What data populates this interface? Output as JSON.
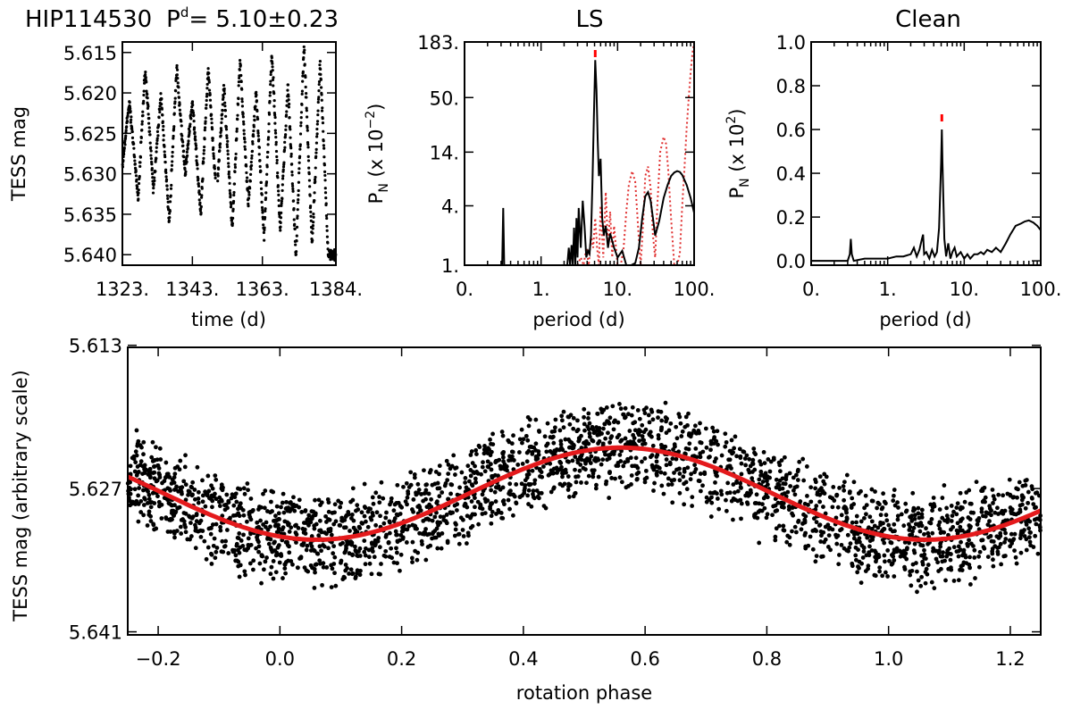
{
  "figure": {
    "star": "HIP114530",
    "period_prefix": "P",
    "period_super": "d",
    "period_value": "=  5.10±0.23",
    "colors": {
      "data": "#000000",
      "fit": "#e41a1c",
      "periodogram_alt": "#e03030",
      "peak_marker": "#ff0000"
    }
  },
  "chart_data": [
    {
      "id": "lightcurve",
      "type": "scatter",
      "title": "",
      "xlabel": "time (d)",
      "ylabel": "TESS mag",
      "xlim": [
        1323,
        1384
      ],
      "ylim": [
        5.6413,
        5.6137
      ],
      "y_inverted": true,
      "x_ticks": [
        "1323.",
        "1343.",
        "1363.",
        "1384."
      ],
      "x_tick_values": [
        1323,
        1343,
        1363,
        1384
      ],
      "y_ticks": [
        "5.615",
        "5.620",
        "5.625",
        "5.630",
        "5.635",
        "5.640"
      ],
      "y_tick_values": [
        5.615,
        5.62,
        5.625,
        5.63,
        5.635,
        5.64
      ],
      "min_x": [
        1323.0,
        1327.5,
        1331.9,
        1336.4,
        1340.9,
        1345.4,
        1349.9,
        1354.4,
        1359.0,
        1363.5,
        1368.1,
        1372.6,
        1377.2,
        1381.8
      ],
      "min_y": [
        5.629,
        5.633,
        5.632,
        5.636,
        5.63,
        5.635,
        5.633,
        5.637,
        5.634,
        5.638,
        5.637,
        5.64,
        5.639,
        5.64
      ],
      "max_x": [
        1325.0,
        1329.5,
        1334.0,
        1338.5,
        1343.0,
        1347.5,
        1352.0,
        1356.6,
        1361.2,
        1365.7,
        1370.3,
        1374.9,
        1379.5
      ],
      "max_y": [
        5.621,
        5.617,
        5.62,
        5.617,
        5.621,
        5.617,
        5.619,
        5.616,
        5.62,
        5.615,
        5.619,
        5.614,
        5.616
      ]
    },
    {
      "id": "ls",
      "type": "line",
      "title": "LS",
      "xlabel": "period (d)",
      "ylabel": "P",
      "ylabel_sub": "N",
      "ylabel_rest": " (x 10",
      "ylabel_exp": "−2",
      "ylabel_close": ")",
      "x_log": true,
      "y_log": true,
      "xlim": [
        0.1,
        100
      ],
      "ylim": [
        1,
        183
      ],
      "x_ticks": [
        "0.",
        "1.",
        "10.",
        "100."
      ],
      "x_tick_values": [
        0.1,
        1,
        10,
        100
      ],
      "y_ticks": [
        "1.",
        "4.",
        "14.",
        "50.",
        "183."
      ],
      "y_tick_values": [
        1,
        4,
        14,
        50,
        183
      ],
      "peak_period": 5.1,
      "series": [
        {
          "x": [
            0.3,
            0.31,
            0.32,
            0.33,
            0.34,
            2.2,
            2.3,
            2.4,
            2.5,
            2.6,
            2.7,
            2.8,
            2.9,
            3.0,
            3.1,
            3.3,
            3.5,
            3.7,
            3.9,
            4.1,
            4.3,
            4.5,
            4.7,
            4.9,
            5.1,
            5.3,
            5.5,
            5.7,
            6.0,
            6.3,
            6.6,
            7.0,
            7.5,
            8.0,
            9.0,
            10.0,
            11.5,
            13.0,
            15.0,
            17.0,
            19.0,
            21.0,
            23.0,
            25.0,
            27.0,
            29.0,
            31.0,
            35.0,
            40.0,
            45.0,
            50.0,
            55.0,
            60.0,
            65.0,
            70.0,
            80.0,
            90.0,
            100.0
          ],
          "y": [
            1.0,
            1.0,
            3.8,
            1.0,
            1.0,
            1.0,
            1.5,
            1.0,
            1.6,
            1.0,
            2.4,
            1.0,
            3.0,
            1.2,
            3.8,
            1.5,
            4.5,
            2.5,
            1.2,
            1.4,
            1.3,
            2.0,
            7.0,
            32.0,
            120.0,
            60.0,
            18.0,
            8.0,
            12.0,
            3.0,
            2.0,
            2.5,
            1.5,
            2.1,
            1.5,
            1.2,
            1.4,
            1.0,
            1.0,
            1.05,
            1.5,
            3.0,
            5.0,
            5.5,
            4.5,
            3.0,
            2.0,
            2.8,
            4.8,
            6.5,
            8.0,
            8.7,
            9.0,
            8.8,
            8.2,
            6.5,
            4.8,
            3.4
          ]
        },
        {
          "x": [
            3.0,
            3.3,
            3.6,
            3.9,
            4.2,
            4.5,
            4.8,
            5.1,
            5.4,
            5.7,
            6.0,
            6.5,
            7.0,
            7.5,
            8.0,
            8.5,
            9.0,
            10.0,
            11.0,
            12.0,
            13.0,
            14.0,
            15.5,
            17.0,
            18.5,
            20.0,
            21.5,
            23.0,
            25.0,
            27.0,
            29.0,
            31.0,
            33.0,
            36.0,
            40.0,
            43.0,
            46.0,
            50.0,
            55.0,
            60.0,
            65.0,
            70.0,
            75.0,
            80.0,
            85.0,
            90.0,
            95.0,
            100.0
          ],
          "y": [
            1.0,
            1.2,
            1.0,
            1.5,
            1.0,
            2.0,
            1.5,
            3.0,
            1.5,
            1.0,
            4.0,
            1.2,
            5.5,
            1.5,
            3.5,
            1.2,
            2.5,
            1.0,
            1.0,
            1.5,
            3.5,
            6.5,
            9.0,
            7.0,
            2.5,
            1.0,
            2.5,
            8.0,
            10.0,
            6.0,
            2.0,
            1.2,
            4.0,
            14.0,
            20.0,
            17.0,
            9.0,
            3.0,
            1.0,
            1.0,
            1.3,
            4.0,
            10.0,
            25.0,
            50.0,
            90.0,
            140.0,
            183.0
          ]
        }
      ]
    },
    {
      "id": "clean",
      "type": "line",
      "title": "Clean",
      "xlabel": "period (d)",
      "ylabel": "P",
      "ylabel_sub": "N",
      "ylabel_rest": " (x 10",
      "ylabel_exp": "2",
      "ylabel_close": ")",
      "x_log": true,
      "xlim": [
        0.1,
        100
      ],
      "ylim": [
        -0.02,
        1.0
      ],
      "x_ticks": [
        "0.",
        "1.",
        "10.",
        "100."
      ],
      "x_tick_values": [
        0.1,
        1,
        10,
        100
      ],
      "y_ticks": [
        "0.0",
        "0.2",
        "0.4",
        "0.6",
        "0.8",
        "1.0"
      ],
      "y_tick_values": [
        0.0,
        0.2,
        0.4,
        0.6,
        0.8,
        1.0
      ],
      "peak_period": 5.1,
      "series": [
        {
          "x": [
            0.1,
            0.2,
            0.3,
            0.32,
            0.33,
            0.34,
            0.36,
            0.5,
            0.8,
            1.0,
            1.3,
            1.6,
            2.0,
            2.2,
            2.4,
            2.6,
            2.8,
            2.9,
            3.0,
            3.2,
            3.5,
            3.8,
            4.1,
            4.4,
            4.7,
            5.0,
            5.1,
            5.2,
            5.5,
            5.8,
            6.2,
            6.6,
            7.0,
            7.5,
            8.0,
            9.0,
            10.0,
            11.0,
            12.0,
            13.5,
            15.0,
            16.5,
            18.0,
            20.0,
            23.0,
            26.0,
            30.0,
            35.0,
            40.0,
            47.0,
            55.0,
            62.0,
            70.0,
            80.0,
            90.0,
            100.0
          ],
          "y": [
            0.0,
            0.0,
            0.0,
            0.03,
            0.1,
            0.03,
            0.0,
            0.01,
            0.01,
            0.01,
            0.02,
            0.02,
            0.03,
            0.06,
            0.02,
            0.05,
            0.1,
            0.12,
            0.03,
            0.04,
            0.01,
            0.05,
            0.02,
            0.04,
            0.15,
            0.45,
            0.6,
            0.45,
            0.1,
            0.02,
            0.08,
            0.01,
            0.04,
            0.06,
            0.02,
            0.04,
            0.01,
            0.03,
            0.01,
            0.03,
            0.03,
            0.04,
            0.03,
            0.05,
            0.04,
            0.06,
            0.04,
            0.08,
            0.12,
            0.16,
            0.17,
            0.18,
            0.185,
            0.175,
            0.16,
            0.14
          ]
        }
      ]
    },
    {
      "id": "phased",
      "type": "scatter",
      "title": "",
      "xlabel": "rotation phase",
      "ylabel": "TESS mag (arbitrary scale)",
      "xlim": [
        -0.25,
        1.25
      ],
      "ylim": [
        5.6413,
        5.6132
      ],
      "y_inverted": true,
      "x_ticks": [
        "−0.2",
        "0.0",
        "0.2",
        "0.4",
        "0.6",
        "0.8",
        "1.0",
        "1.2"
      ],
      "x_tick_values": [
        -0.2,
        0.0,
        0.2,
        0.4,
        0.6,
        0.8,
        1.0,
        1.2
      ],
      "y_ticks": [
        "5.613",
        "5.627",
        "5.641"
      ],
      "y_tick_values": [
        5.613,
        5.627,
        5.641
      ],
      "fit": {
        "mean": 5.6275,
        "amplitude": 0.0045,
        "max_phase": 0.56
      },
      "spread": 0.0035
    }
  ]
}
